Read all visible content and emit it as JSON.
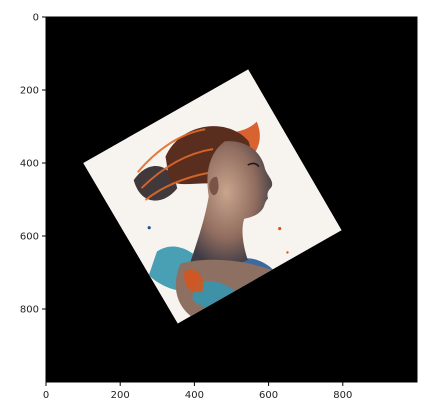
{
  "figure": {
    "background": "#ffffff",
    "image_background": "#000000",
    "image_description": "Rotated square artwork of a woman's profile in expressive paint splashes (orange, teal, blue, dark) on a white ground"
  },
  "axes": {
    "x_ticks": [
      "0",
      "200",
      "400",
      "600",
      "800"
    ],
    "y_ticks": [
      "0",
      "200",
      "400",
      "600",
      "800"
    ],
    "x_range": [
      0,
      1000
    ],
    "y_range": [
      1000,
      0
    ]
  },
  "chart_data": {
    "type": "image",
    "xlim": [
      0,
      1000
    ],
    "ylim": [
      1000,
      0
    ],
    "x_ticks": [
      0,
      200,
      400,
      600,
      800
    ],
    "y_ticks": [
      0,
      200,
      400,
      600,
      800
    ],
    "image_corners": [
      [
        100,
        400
      ],
      [
        545,
        143
      ],
      [
        797,
        584
      ],
      [
        355,
        840
      ]
    ],
    "grid": false
  }
}
